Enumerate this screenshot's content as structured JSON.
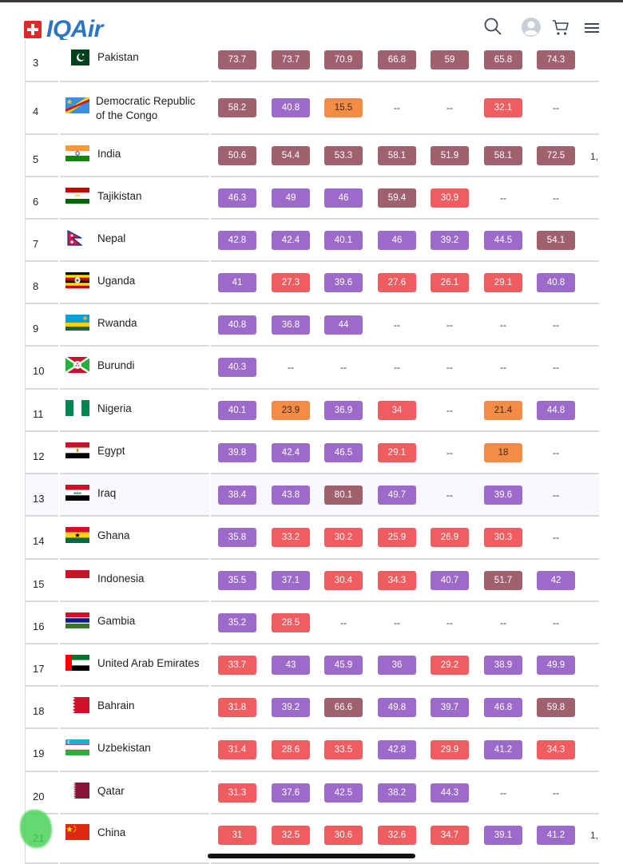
{
  "brand": {
    "name": "IQAir"
  },
  "header_icons": [
    "search-icon",
    "user-avatar-icon",
    "cart-icon",
    "hamburger-menu-icon"
  ],
  "colors": {
    "maroon": "#a0616f",
    "purple": "#9c6bc9",
    "red": "#ef5d61",
    "orange": "#f58c45",
    "brand_blue": "#2a76c6",
    "swiss_red": "#e3262a"
  },
  "rows": [
    {
      "rank": "3",
      "country": [
        "Pakistan"
      ],
      "flag": "pakistan",
      "cells": [
        [
          "73.7",
          "maroon"
        ],
        [
          "73.7",
          "maroon"
        ],
        [
          "70.9",
          "maroon"
        ],
        [
          "66.8",
          "maroon"
        ],
        [
          "59",
          "maroon"
        ],
        [
          "65.8",
          "maroon"
        ],
        [
          "74.3",
          "maroon"
        ]
      ],
      "overflow": ""
    },
    {
      "rank": "4",
      "country": [
        "Democratic Republic",
        "of the Congo"
      ],
      "flag": "drc",
      "cells": [
        [
          "58.2",
          "maroon"
        ],
        [
          "40.8",
          "purple"
        ],
        [
          "15.5",
          "orange"
        ],
        [
          "--",
          "dash"
        ],
        [
          "--",
          "dash"
        ],
        [
          "32.1",
          "red"
        ],
        [
          "--",
          "dash"
        ]
      ],
      "overflow": ""
    },
    {
      "rank": "5",
      "country": [
        "India"
      ],
      "flag": "india",
      "cells": [
        [
          "50.6",
          "maroon"
        ],
        [
          "54.4",
          "maroon"
        ],
        [
          "53.3",
          "maroon"
        ],
        [
          "58.1",
          "maroon"
        ],
        [
          "51.9",
          "maroon"
        ],
        [
          "58.1",
          "maroon"
        ],
        [
          "72.5",
          "maroon"
        ]
      ],
      "overflow": "1,"
    },
    {
      "rank": "6",
      "country": [
        "Tajikistan"
      ],
      "flag": "tajikistan",
      "cells": [
        [
          "46.3",
          "purple"
        ],
        [
          "49",
          "purple"
        ],
        [
          "46",
          "purple"
        ],
        [
          "59.4",
          "maroon"
        ],
        [
          "30.9",
          "red"
        ],
        [
          "--",
          "dash"
        ],
        [
          "--",
          "dash"
        ]
      ],
      "overflow": ""
    },
    {
      "rank": "7",
      "country": [
        "Nepal"
      ],
      "flag": "nepal",
      "cells": [
        [
          "42.8",
          "purple"
        ],
        [
          "42.4",
          "purple"
        ],
        [
          "40.1",
          "purple"
        ],
        [
          "46",
          "purple"
        ],
        [
          "39.2",
          "purple"
        ],
        [
          "44.5",
          "purple"
        ],
        [
          "54.1",
          "maroon"
        ]
      ],
      "overflow": ""
    },
    {
      "rank": "8",
      "country": [
        "Uganda"
      ],
      "flag": "uganda",
      "cells": [
        [
          "41",
          "purple"
        ],
        [
          "27.3",
          "red"
        ],
        [
          "39.6",
          "purple"
        ],
        [
          "27.6",
          "red"
        ],
        [
          "26.1",
          "red"
        ],
        [
          "29.1",
          "red"
        ],
        [
          "40.8",
          "purple"
        ]
      ],
      "overflow": ""
    },
    {
      "rank": "9",
      "country": [
        "Rwanda"
      ],
      "flag": "rwanda",
      "cells": [
        [
          "40.8",
          "purple"
        ],
        [
          "36.8",
          "purple"
        ],
        [
          "44",
          "purple"
        ],
        [
          "--",
          "dash"
        ],
        [
          "--",
          "dash"
        ],
        [
          "--",
          "dash"
        ],
        [
          "--",
          "dash"
        ]
      ],
      "overflow": ""
    },
    {
      "rank": "10",
      "country": [
        "Burundi"
      ],
      "flag": "burundi",
      "cells": [
        [
          "40.3",
          "purple"
        ],
        [
          "--",
          "dash"
        ],
        [
          "--",
          "dash"
        ],
        [
          "--",
          "dash"
        ],
        [
          "--",
          "dash"
        ],
        [
          "--",
          "dash"
        ],
        [
          "--",
          "dash"
        ]
      ],
      "overflow": ""
    },
    {
      "rank": "11",
      "country": [
        "Nigeria"
      ],
      "flag": "nigeria",
      "cells": [
        [
          "40.1",
          "purple"
        ],
        [
          "23.9",
          "orange"
        ],
        [
          "36.9",
          "purple"
        ],
        [
          "34",
          "red"
        ],
        [
          "--",
          "dash"
        ],
        [
          "21.4",
          "orange"
        ],
        [
          "44.8",
          "purple"
        ]
      ],
      "overflow": ""
    },
    {
      "rank": "12",
      "country": [
        "Egypt"
      ],
      "flag": "egypt",
      "cells": [
        [
          "39.8",
          "purple"
        ],
        [
          "42.4",
          "purple"
        ],
        [
          "46.5",
          "purple"
        ],
        [
          "29.1",
          "red"
        ],
        [
          "--",
          "dash"
        ],
        [
          "18",
          "orange"
        ],
        [
          "--",
          "dash"
        ]
      ],
      "overflow": ""
    },
    {
      "rank": "13",
      "country": [
        "Iraq"
      ],
      "flag": "iraq",
      "cells": [
        [
          "38.4",
          "purple"
        ],
        [
          "43.8",
          "purple"
        ],
        [
          "80.1",
          "maroon"
        ],
        [
          "49.7",
          "purple"
        ],
        [
          "--",
          "dash"
        ],
        [
          "39.6",
          "purple"
        ],
        [
          "--",
          "dash"
        ]
      ],
      "overflow": "",
      "highlight": true
    },
    {
      "rank": "14",
      "country": [
        "Ghana"
      ],
      "flag": "ghana",
      "cells": [
        [
          "35.8",
          "purple"
        ],
        [
          "33.2",
          "red"
        ],
        [
          "30.2",
          "red"
        ],
        [
          "25.9",
          "red"
        ],
        [
          "26.9",
          "red"
        ],
        [
          "30.3",
          "red"
        ],
        [
          "--",
          "dash"
        ]
      ],
      "overflow": ""
    },
    {
      "rank": "15",
      "country": [
        "Indonesia"
      ],
      "flag": "indonesia",
      "cells": [
        [
          "35.5",
          "purple"
        ],
        [
          "37.1",
          "purple"
        ],
        [
          "30.4",
          "red"
        ],
        [
          "34.3",
          "red"
        ],
        [
          "40.7",
          "purple"
        ],
        [
          "51.7",
          "maroon"
        ],
        [
          "42",
          "purple"
        ]
      ],
      "overflow": ""
    },
    {
      "rank": "16",
      "country": [
        "Gambia"
      ],
      "flag": "gambia",
      "cells": [
        [
          "35.2",
          "purple"
        ],
        [
          "28.5",
          "red"
        ],
        [
          "--",
          "dash"
        ],
        [
          "--",
          "dash"
        ],
        [
          "--",
          "dash"
        ],
        [
          "--",
          "dash"
        ],
        [
          "--",
          "dash"
        ]
      ],
      "overflow": ""
    },
    {
      "rank": "17",
      "country": [
        "United Arab Emirates"
      ],
      "flag": "uae",
      "cells": [
        [
          "33.7",
          "red"
        ],
        [
          "43",
          "purple"
        ],
        [
          "45.9",
          "purple"
        ],
        [
          "36",
          "purple"
        ],
        [
          "29.2",
          "red"
        ],
        [
          "38.9",
          "purple"
        ],
        [
          "49.9",
          "purple"
        ]
      ],
      "overflow": ""
    },
    {
      "rank": "18",
      "country": [
        "Bahrain"
      ],
      "flag": "bahrain",
      "cells": [
        [
          "31.8",
          "red"
        ],
        [
          "39.2",
          "purple"
        ],
        [
          "66.6",
          "maroon"
        ],
        [
          "49.8",
          "purple"
        ],
        [
          "39.7",
          "purple"
        ],
        [
          "46.8",
          "purple"
        ],
        [
          "59.8",
          "maroon"
        ]
      ],
      "overflow": ""
    },
    {
      "rank": "19",
      "country": [
        "Uzbekistan"
      ],
      "flag": "uzbekistan",
      "cells": [
        [
          "31.4",
          "red"
        ],
        [
          "28.6",
          "red"
        ],
        [
          "33.5",
          "red"
        ],
        [
          "42.8",
          "purple"
        ],
        [
          "29.9",
          "red"
        ],
        [
          "41.2",
          "purple"
        ],
        [
          "34.3",
          "red"
        ]
      ],
      "overflow": ""
    },
    {
      "rank": "20",
      "country": [
        "Qatar"
      ],
      "flag": "qatar",
      "cells": [
        [
          "31.3",
          "red"
        ],
        [
          "37.6",
          "purple"
        ],
        [
          "42.5",
          "purple"
        ],
        [
          "38.2",
          "purple"
        ],
        [
          "44.3",
          "purple"
        ],
        [
          "--",
          "dash"
        ],
        [
          "--",
          "dash"
        ]
      ],
      "overflow": ""
    },
    {
      "rank": "21",
      "country": [
        "China"
      ],
      "flag": "china",
      "cells": [
        [
          "31",
          "red"
        ],
        [
          "32.5",
          "red"
        ],
        [
          "30.6",
          "red"
        ],
        [
          "32.6",
          "red"
        ],
        [
          "34.7",
          "red"
        ],
        [
          "39.1",
          "purple"
        ],
        [
          "41.2",
          "purple"
        ]
      ],
      "overflow": "1,"
    }
  ]
}
